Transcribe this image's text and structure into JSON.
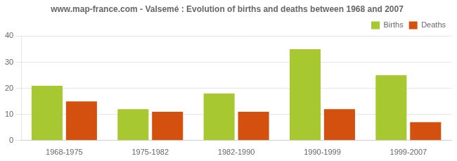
{
  "chart_data": {
    "type": "bar",
    "title": "www.map-france.com - Valsemé : Evolution of births and deaths between 1968 and 2007",
    "categories": [
      "1968-1975",
      "1975-1982",
      "1982-1990",
      "1990-1999",
      "1999-2007"
    ],
    "series": [
      {
        "name": "Births",
        "color": "#a8c832",
        "values": [
          21,
          12,
          18,
          35,
          25
        ]
      },
      {
        "name": "Deaths",
        "color": "#d4500e",
        "values": [
          15,
          11,
          11,
          12,
          7
        ]
      }
    ],
    "ylim": [
      0,
      40
    ],
    "yticks": [
      0,
      10,
      20,
      30,
      40
    ],
    "grid": true,
    "legend": "upper right"
  }
}
